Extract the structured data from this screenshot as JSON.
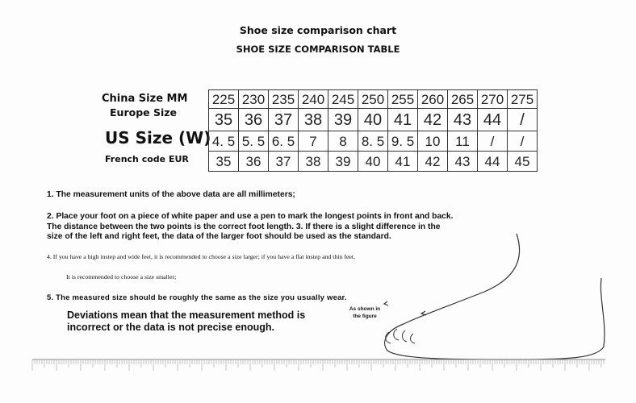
{
  "title": "Shoe size comparison chart",
  "subtitle": "SHOE SIZE COMPARISON TABLE",
  "table": {
    "row_labels": [
      "China Size MM",
      "Europe Size",
      "US Size (W)",
      "French code EUR"
    ],
    "rows": [
      [
        "225",
        "230",
        "235",
        "240",
        "245",
        "250",
        "255",
        "260",
        "265",
        "270",
        "275"
      ],
      [
        "35",
        "36",
        "37",
        "38",
        "39",
        "40",
        "41",
        "42",
        "43",
        "44",
        "/"
      ],
      [
        "4. 5",
        "5. 5",
        "6. 5",
        "7",
        "8",
        "8. 5",
        "9. 5",
        "10",
        "11",
        "/",
        "/"
      ],
      [
        "35",
        "36",
        "37",
        "38",
        "39",
        "40",
        "41",
        "42",
        "43",
        "44",
        "45"
      ]
    ]
  },
  "notes": [
    "1. The measurement units of the above data are all millimeters;",
    "2. Place your foot on a piece of white paper and use a pen to mark the longest points in front and back.",
    "The distance between the two points is the correct foot length. 3. If there is a slight difference in the",
    "size of the left and right feet, the data of the larger foot should be used as the standard.",
    "4. If you have a high instep and wide feet, it is recommended to choose a size larger; if you have a flat instep and thin feet,",
    "It is recommended to choose a size smaller;",
    "5. The measured size should be roughly the same as the size you usually wear."
  ],
  "deviation": [
    "Deviations mean that the measurement method is",
    "incorrect or the data is not precise enough."
  ],
  "figure_caption": [
    "As shown in",
    "the figure"
  ]
}
